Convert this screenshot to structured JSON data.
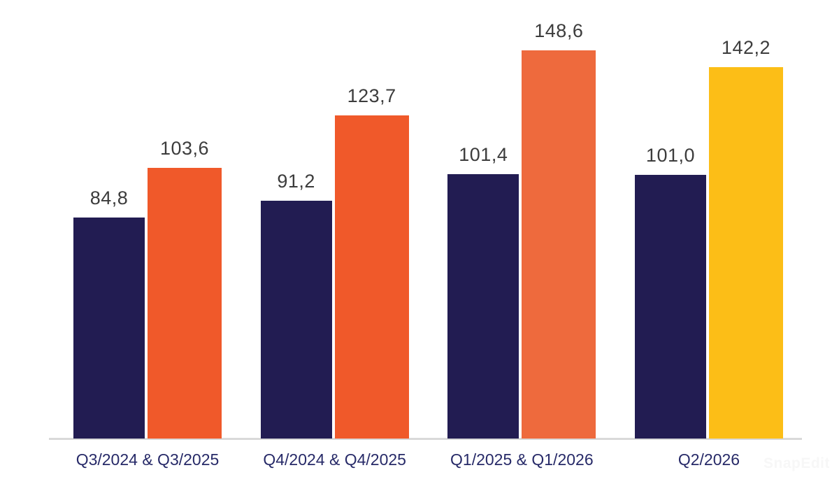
{
  "watermark": {
    "text": "SnapEdit"
  },
  "chart_data": {
    "type": "bar",
    "title": "",
    "xlabel": "",
    "ylabel": "",
    "grid": false,
    "legend_position": "none",
    "ylim": [
      0,
      168
    ],
    "decimal_separator": ",",
    "categories": [
      "Q3/2024 & Q3/2025",
      "Q4/2024 & Q4/2025",
      "Q1/2025 & Q1/2026",
      "Q2/2026"
    ],
    "series": [
      {
        "name": "earlier-quarter",
        "values": [
          84.8,
          91.2,
          101.4,
          101.0
        ],
        "display_labels": [
          "84,8",
          "91,2",
          "101,4",
          "101,0"
        ],
        "colors": [
          "#221c52",
          "#221c52",
          "#221c52",
          "#221c52"
        ]
      },
      {
        "name": "later-quarter",
        "values": [
          103.6,
          123.7,
          148.6,
          142.2
        ],
        "display_labels": [
          "103,6",
          "123,7",
          "148,6",
          "142,2"
        ],
        "colors": [
          "#f0592a",
          "#f0592a",
          "#ee6a3d",
          "#fcbe17"
        ]
      }
    ],
    "colors": {
      "value_label": "#3c3c3c",
      "category_label": "#272a68",
      "axis_line": "#d9d9d9",
      "background": "#ffffff"
    }
  }
}
